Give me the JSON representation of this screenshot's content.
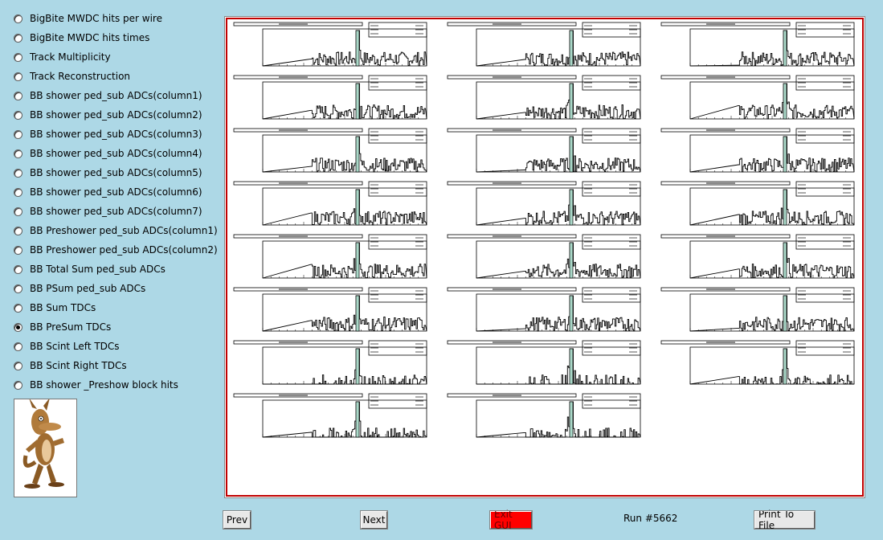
{
  "menu": {
    "items": [
      {
        "label": "BigBite MWDC hits per wire",
        "selected": false
      },
      {
        "label": "BigBite MWDC hits times",
        "selected": false
      },
      {
        "label": "Track Multiplicity",
        "selected": false
      },
      {
        "label": "Track Reconstruction",
        "selected": false
      },
      {
        "label": "BB shower ped_sub ADCs(column1)",
        "selected": false
      },
      {
        "label": "BB shower ped_sub ADCs(column2)",
        "selected": false
      },
      {
        "label": "BB shower ped_sub ADCs(column3)",
        "selected": false
      },
      {
        "label": "BB shower ped_sub ADCs(column4)",
        "selected": false
      },
      {
        "label": "BB shower ped_sub ADCs(column5)",
        "selected": false
      },
      {
        "label": "BB shower ped_sub ADCs(column6)",
        "selected": false
      },
      {
        "label": "BB shower ped_sub ADCs(column7)",
        "selected": false
      },
      {
        "label": "BB Preshower ped_sub ADCs(column1)",
        "selected": false
      },
      {
        "label": "BB Preshower ped_sub ADCs(column2)",
        "selected": false
      },
      {
        "label": "BB Total Sum ped_sub ADCs",
        "selected": false
      },
      {
        "label": "BB PSum ped_sub ADCs",
        "selected": false
      },
      {
        "label": "BB Sum TDCs",
        "selected": false
      },
      {
        "label": "BB PreSum TDCs",
        "selected": true
      },
      {
        "label": "BB Scint Left TDCs",
        "selected": false
      },
      {
        "label": "BB Scint Right TDCs",
        "selected": false
      },
      {
        "label": "BB shower _Preshow block hits",
        "selected": false
      }
    ]
  },
  "canvas": {
    "histogram_count": 23,
    "columns": 3,
    "colors": {
      "border": "#c00000",
      "peak_fill": "#aad8c8",
      "bars": "#000000"
    }
  },
  "footer": {
    "prev_label": "Prev",
    "next_label": "Next",
    "exit_label": "Exit GUI",
    "run_label": "Run #5662",
    "print_label": "Print To File"
  },
  "logo": {
    "icon": "coyote-logo"
  }
}
